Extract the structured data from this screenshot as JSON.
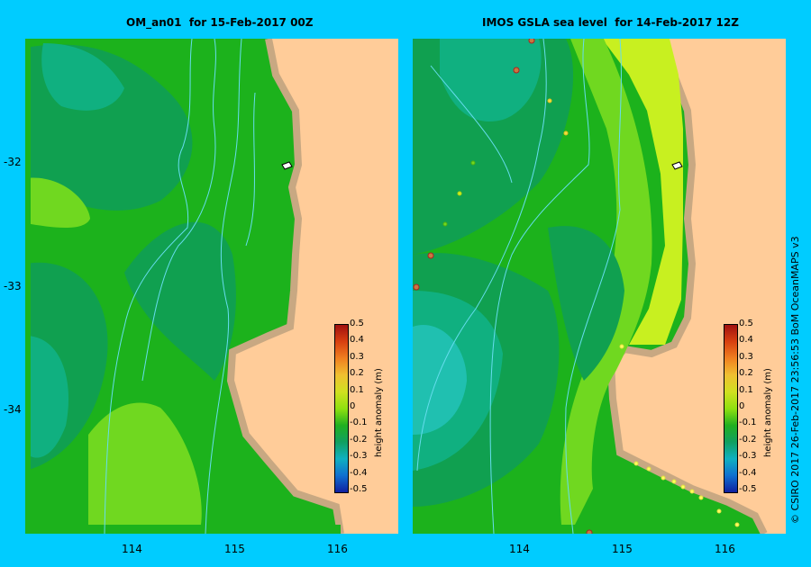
{
  "panels": [
    {
      "title": "OM_an01  for 15-Feb-2017 00Z"
    },
    {
      "title": "IMOS GSLA sea level  for 14-Feb-2017 12Z"
    }
  ],
  "axes": {
    "lat_ticks": [
      "-32",
      "-33",
      "-34"
    ],
    "lon_ticks": [
      "114",
      "115",
      "116"
    ]
  },
  "colorbar": {
    "title": "height anomaly (m)",
    "ticks": [
      "0.5",
      "0.4",
      "0.3",
      "0.2",
      "0.1",
      "0",
      "-0.1",
      "-0.2",
      "-0.3",
      "-0.4",
      "-0.5"
    ],
    "colors": [
      "#a01010",
      "#d84010",
      "#f08020",
      "#f0c030",
      "#d0e020",
      "#90e010",
      "#20b020",
      "#10a060",
      "#10b0c0",
      "#1070d0",
      "#1020a0"
    ]
  },
  "credit": "© CSIRO 2017   26-Feb-2017 23:56:53 BoM OceanMAPS v3",
  "palette": {
    "background": "#00ccff",
    "land": "#ffcc99",
    "shelf": "#c8a882",
    "isobath": "#66ddee"
  }
}
